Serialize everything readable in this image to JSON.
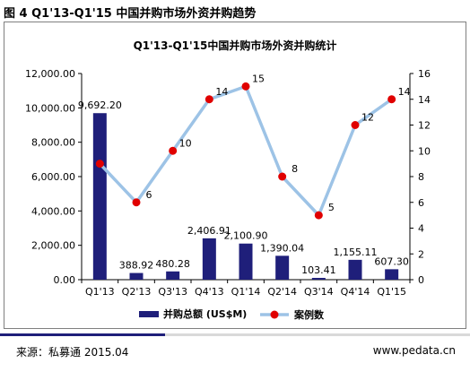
{
  "figure_title": "图 4 Q1'13-Q1'15 中国并购市场外资并购趋势",
  "footer": {
    "source": "来源：私募通 2015.04",
    "website": "www.pedata.cn"
  },
  "chart_data": {
    "type": "bar+line",
    "title": "Q1'13-Q1'15中国并购市场外资并购统计",
    "categories": [
      "Q1'13",
      "Q2'13",
      "Q3'13",
      "Q4'13",
      "Q1'14",
      "Q2'14",
      "Q3'14",
      "Q4'14",
      "Q1'15"
    ],
    "bar_series": {
      "name": "并购总额 (US$M)",
      "axis": "left",
      "color": "#1f1f7a",
      "values": [
        9692.2,
        388.92,
        480.28,
        2406.91,
        2100.9,
        1390.04,
        103.41,
        1155.11,
        607.3
      ],
      "labels": [
        "9,692.20",
        "388.92",
        "480.28",
        "2,406.91",
        "2,100.90",
        "1,390.04",
        "103.41",
        "1,155.11",
        "607.30"
      ]
    },
    "line_series": {
      "name": "案例数",
      "axis": "right",
      "line_color": "#9dc3e6",
      "marker_color": "#e00000",
      "values": [
        9,
        6,
        10,
        14,
        15,
        8,
        5,
        12,
        14
      ],
      "labels": [
        "",
        "6",
        "10",
        "14",
        "15",
        "8",
        "5",
        "12",
        "14"
      ]
    },
    "y_left": {
      "min": 0,
      "max": 12000,
      "step": 2000,
      "tick_labels": [
        "0.00",
        "2,000.00",
        "4,000.00",
        "6,000.00",
        "8,000.00",
        "10,000.00",
        "12,000.00"
      ]
    },
    "y_right": {
      "min": 0,
      "max": 16,
      "step": 2,
      "tick_labels": [
        "0",
        "2",
        "4",
        "6",
        "8",
        "10",
        "12",
        "14",
        "16"
      ]
    },
    "grid": false,
    "legend_position": "bottom"
  }
}
